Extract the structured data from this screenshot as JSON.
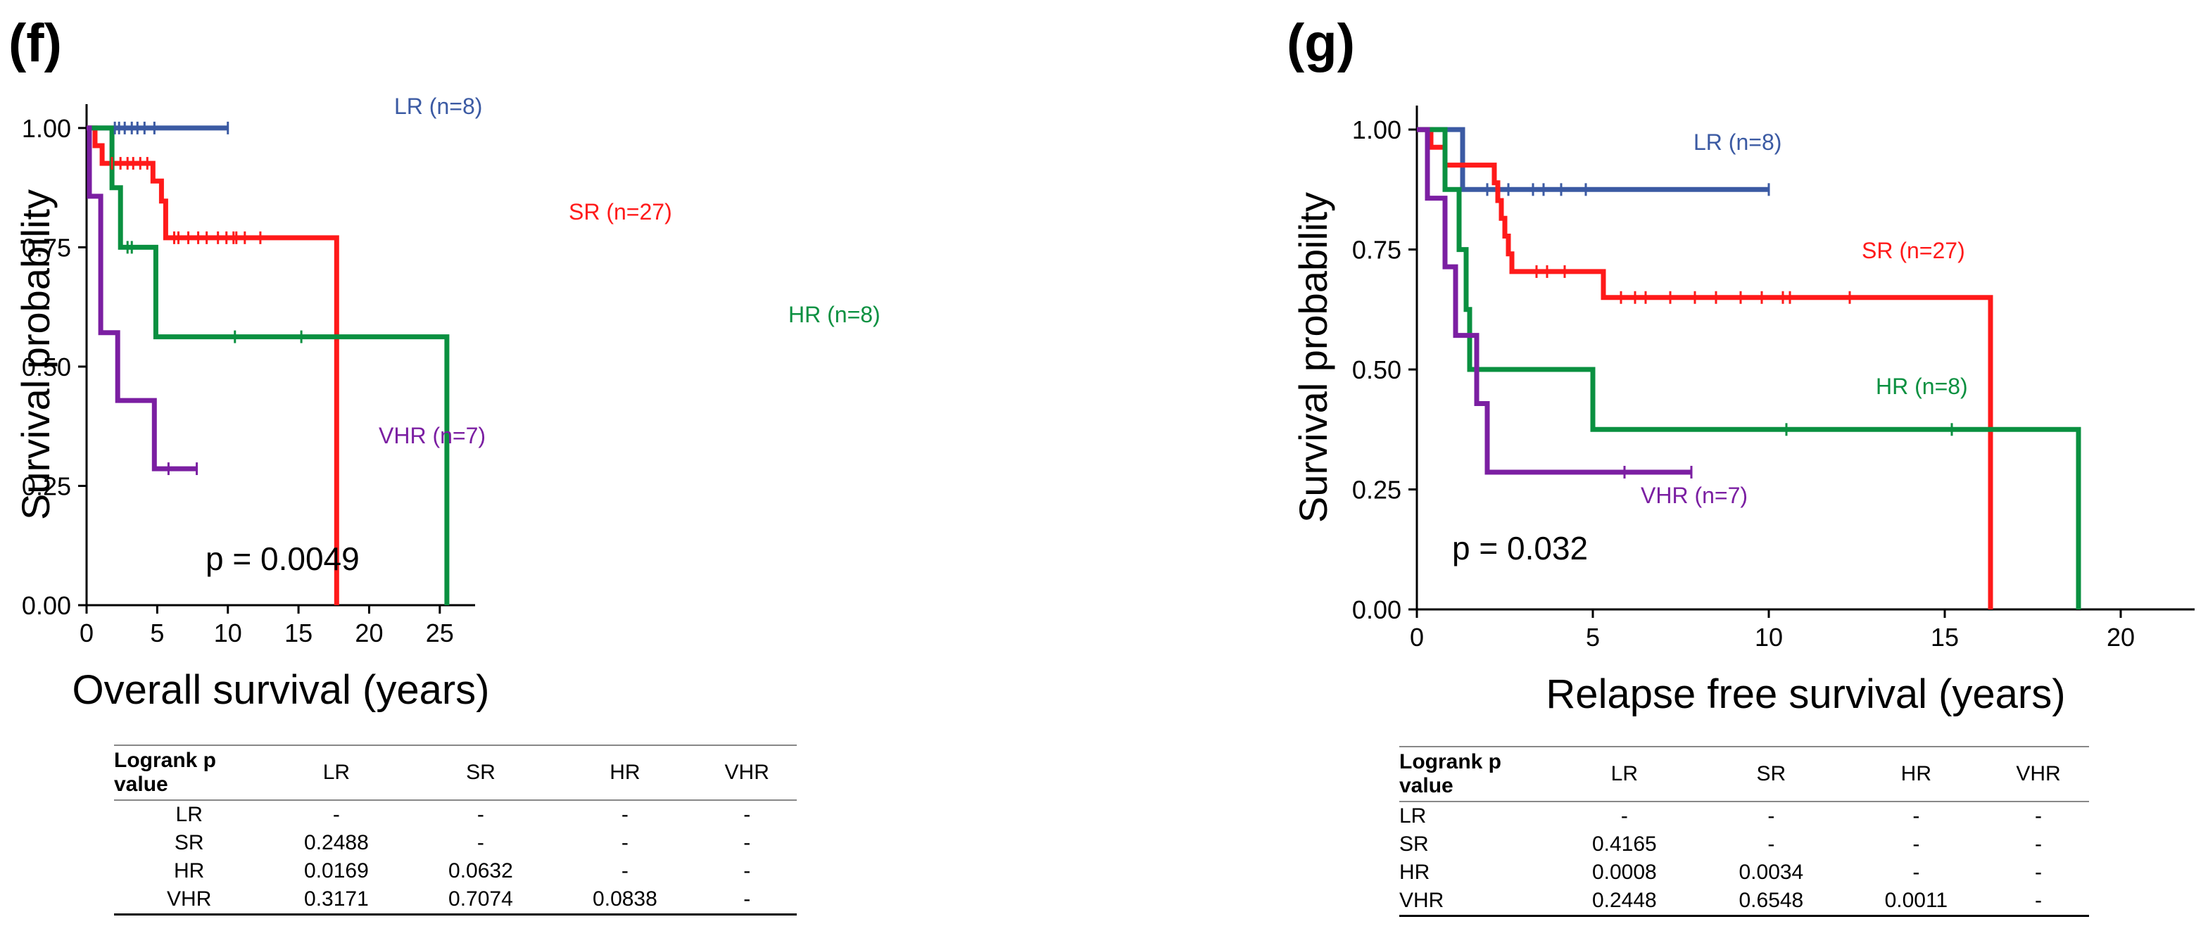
{
  "chart_data": [
    {
      "panel_label": "(f)",
      "type": "line",
      "subtype": "kaplan-meier-step",
      "xlabel": "Overall survival (years)",
      "ylabel": "Survival probability",
      "xlim": [
        0,
        27.5
      ],
      "ylim": [
        0,
        1.05
      ],
      "xticks": [
        "0",
        "5",
        "10",
        "15",
        "20",
        "25"
      ],
      "yticks": [
        "0.00",
        "0.25",
        "0.50",
        "0.75",
        "1.00"
      ],
      "pvalue_text": "p = 0.0049",
      "series": [
        {
          "name": "LR",
          "label": "LR (n=8)",
          "color": "#3b5aa3",
          "steps": [
            [
              0,
              1.0
            ],
            [
              10,
              1.0
            ]
          ],
          "censor": [
            2.0,
            2.3,
            2.7,
            3.2,
            3.6,
            4.1,
            4.8,
            10.0
          ]
        },
        {
          "name": "SR",
          "label": "SR (n=27)",
          "color": "#ff1a1a",
          "steps": [
            [
              0,
              1.0
            ],
            [
              0.6,
              1.0
            ],
            [
              0.6,
              0.963
            ],
            [
              1.1,
              0.963
            ],
            [
              1.1,
              0.926
            ],
            [
              4.7,
              0.926
            ],
            [
              4.7,
              0.889
            ],
            [
              5.3,
              0.889
            ],
            [
              5.3,
              0.847
            ],
            [
              5.6,
              0.847
            ],
            [
              5.6,
              0.77
            ],
            [
              17.7,
              0.77
            ],
            [
              17.7,
              0.0
            ]
          ],
          "censor": [
            1.8,
            2.4,
            2.9,
            3.3,
            3.8,
            4.3,
            6.2,
            6.5,
            7.2,
            7.9,
            8.5,
            9.3,
            9.9,
            10.4,
            10.6,
            11.2,
            12.3
          ]
        },
        {
          "name": "HR",
          "label": "HR (n=8)",
          "color": "#0a9040",
          "steps": [
            [
              0,
              1.0
            ],
            [
              1.8,
              1.0
            ],
            [
              1.8,
              0.875
            ],
            [
              2.4,
              0.875
            ],
            [
              2.4,
              0.75
            ],
            [
              4.9,
              0.75
            ],
            [
              4.9,
              0.5625
            ],
            [
              25.5,
              0.5625
            ],
            [
              25.5,
              0.0
            ]
          ],
          "censor": [
            2.9,
            3.2,
            10.5,
            15.2
          ]
        },
        {
          "name": "VHR",
          "label": "VHR (n=7)",
          "color": "#7b1fa2",
          "steps": [
            [
              0,
              1.0
            ],
            [
              0.2,
              1.0
            ],
            [
              0.2,
              0.857
            ],
            [
              1.0,
              0.857
            ],
            [
              1.0,
              0.571
            ],
            [
              2.2,
              0.571
            ],
            [
              2.2,
              0.429
            ],
            [
              4.8,
              0.429
            ],
            [
              4.8,
              0.286
            ],
            [
              7.8,
              0.286
            ]
          ],
          "censor": [
            5.8,
            7.8
          ]
        }
      ],
      "table": {
        "header": [
          "Logrank p value",
          "LR",
          "SR",
          "HR",
          "VHR"
        ],
        "rows": [
          [
            "LR",
            "-",
            "-",
            "-",
            "-"
          ],
          [
            "SR",
            "0.2488",
            "-",
            "-",
            "-"
          ],
          [
            "HR",
            "0.0169",
            "0.0632",
            "-",
            "-"
          ],
          [
            "VHR",
            "0.3171",
            "0.7074",
            "0.0838",
            "-"
          ]
        ]
      }
    },
    {
      "panel_label": "(g)",
      "type": "line",
      "subtype": "kaplan-meier-step",
      "xlabel": "Relapse free survival (years)",
      "ylabel": "Survival probability",
      "xlim": [
        0,
        22.1
      ],
      "ylim": [
        0,
        1.05
      ],
      "xticks": [
        "0",
        "5",
        "10",
        "15",
        "20"
      ],
      "yticks": [
        "0.00",
        "0.25",
        "0.50",
        "0.75",
        "1.00"
      ],
      "pvalue_text": "p = 0.032",
      "series": [
        {
          "name": "LR",
          "label": "LR (n=8)",
          "color": "#3b5aa3",
          "steps": [
            [
              0,
              1.0
            ],
            [
              1.3,
              1.0
            ],
            [
              1.3,
              0.875
            ],
            [
              10,
              0.875
            ]
          ],
          "censor": [
            2.0,
            2.6,
            3.3,
            3.6,
            4.1,
            4.8,
            10.0
          ]
        },
        {
          "name": "SR",
          "label": "SR (n=27)",
          "color": "#ff1a1a",
          "steps": [
            [
              0,
              1.0
            ],
            [
              0.4,
              1.0
            ],
            [
              0.4,
              0.963
            ],
            [
              0.8,
              0.963
            ],
            [
              0.8,
              0.926
            ],
            [
              2.2,
              0.926
            ],
            [
              2.2,
              0.889
            ],
            [
              2.3,
              0.889
            ],
            [
              2.3,
              0.852
            ],
            [
              2.4,
              0.852
            ],
            [
              2.4,
              0.815
            ],
            [
              2.5,
              0.815
            ],
            [
              2.5,
              0.778
            ],
            [
              2.6,
              0.778
            ],
            [
              2.6,
              0.741
            ],
            [
              2.7,
              0.741
            ],
            [
              2.7,
              0.704
            ],
            [
              5.3,
              0.704
            ],
            [
              5.3,
              0.65
            ],
            [
              16.3,
              0.65
            ],
            [
              16.3,
              0.0
            ]
          ],
          "censor": [
            3.4,
            3.7,
            4.2,
            5.8,
            6.2,
            6.5,
            7.2,
            7.9,
            8.5,
            9.2,
            9.8,
            10.4,
            10.6,
            12.3
          ]
        },
        {
          "name": "HR",
          "label": "HR (n=8)",
          "color": "#0a9040",
          "steps": [
            [
              0,
              1.0
            ],
            [
              0.8,
              1.0
            ],
            [
              0.8,
              0.875
            ],
            [
              1.2,
              0.875
            ],
            [
              1.2,
              0.75
            ],
            [
              1.4,
              0.75
            ],
            [
              1.4,
              0.625
            ],
            [
              1.5,
              0.625
            ],
            [
              1.5,
              0.5
            ],
            [
              5.0,
              0.5
            ],
            [
              5.0,
              0.375
            ],
            [
              18.8,
              0.375
            ],
            [
              18.8,
              0.0
            ]
          ],
          "censor": [
            10.5,
            15.2
          ]
        },
        {
          "name": "VHR",
          "label": "VHR (n=7)",
          "color": "#7b1fa2",
          "steps": [
            [
              0,
              1.0
            ],
            [
              0.3,
              1.0
            ],
            [
              0.3,
              0.857
            ],
            [
              0.8,
              0.857
            ],
            [
              0.8,
              0.714
            ],
            [
              1.1,
              0.714
            ],
            [
              1.1,
              0.571
            ],
            [
              1.7,
              0.571
            ],
            [
              1.7,
              0.429
            ],
            [
              2.0,
              0.429
            ],
            [
              2.0,
              0.286
            ],
            [
              7.8,
              0.286
            ]
          ],
          "censor": [
            5.9,
            7.8
          ]
        }
      ],
      "table": {
        "header": [
          "Logrank p value",
          "LR",
          "SR",
          "HR",
          "VHR"
        ],
        "rows": [
          [
            "LR",
            "-",
            "-",
            "-",
            "-"
          ],
          [
            "SR",
            "0.4165",
            "-",
            "-",
            "-"
          ],
          [
            "HR",
            "0.0008",
            "0.0034",
            "-",
            "-"
          ],
          [
            "VHR",
            "0.2448",
            "0.6548",
            "0.0011",
            "-"
          ]
        ]
      }
    }
  ]
}
